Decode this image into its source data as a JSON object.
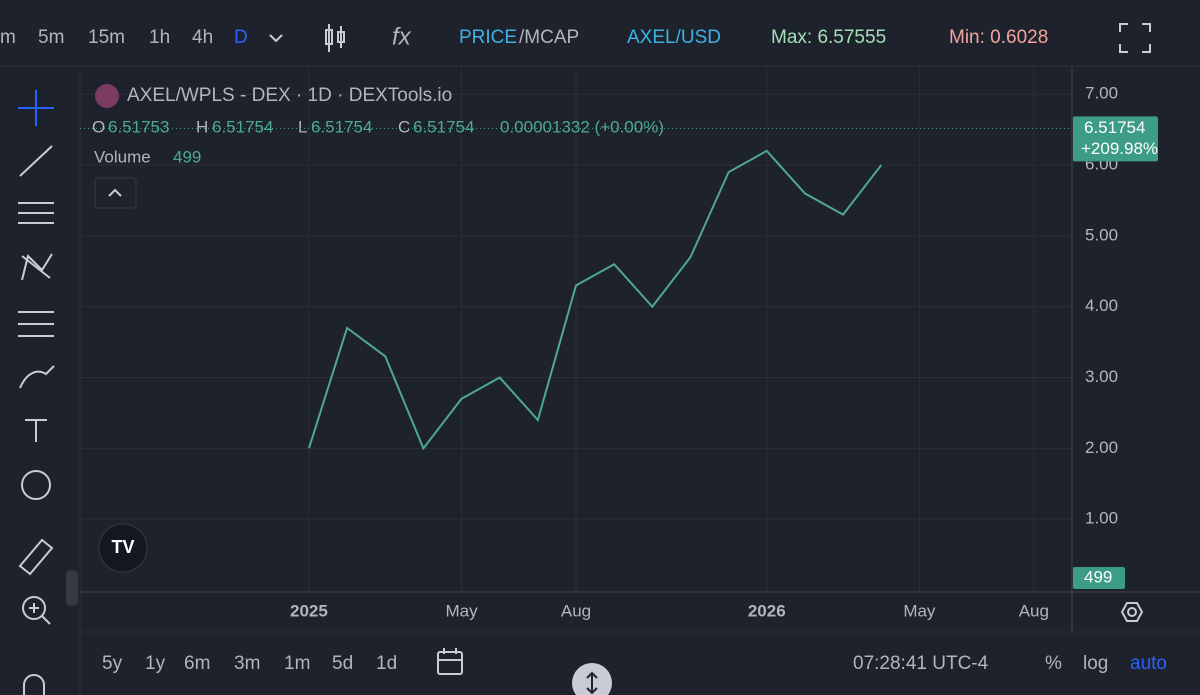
{
  "toolbar": {
    "intervals": [
      "m",
      "5m",
      "15m",
      "1h",
      "4h",
      "D"
    ],
    "price": "PRICE",
    "mcap": "/MCAP",
    "pair": "AXEL/USD",
    "max": "Max: 6.57555",
    "min": "Min: 0.6028"
  },
  "legend": {
    "title": "AXEL/WPLS - DEX · 1D · DEXTools.io",
    "o_label": "O",
    "o": "6.51753",
    "h_label": "H",
    "h": "6.51754",
    "l_label": "L",
    "l": "6.51754",
    "c_label": "C",
    "c": "6.51754",
    "change": "0.00001332 (+0.00%)",
    "volume_label": "Volume",
    "volume": "499"
  },
  "chart_data": {
    "type": "line",
    "x": [
      "2025-01",
      "2025-02",
      "2025-03",
      "2025-04",
      "2025-05",
      "2025-06",
      "2025-07",
      "2025-08",
      "2025-09",
      "2025-10",
      "2025-11",
      "2025-12",
      "2026-01",
      "2026-02",
      "2026-03",
      "2026-04"
    ],
    "series": [
      {
        "name": "AXEL/WPLS",
        "color": "#4fa896",
        "values": [
          2.0,
          3.7,
          3.3,
          2.0,
          2.7,
          3.0,
          2.4,
          4.3,
          4.6,
          4.0,
          4.7,
          5.9,
          6.2,
          5.6,
          5.3,
          6.0
        ]
      }
    ],
    "last_price": 6.51754,
    "last_price_label": "6.51754",
    "last_change": "+209.98%",
    "last_volume": "499",
    "xlim": [
      "2024-07",
      "2026-09"
    ],
    "xticks": [
      {
        "value": "2025-01",
        "label": "2025"
      },
      {
        "value": "2025-05",
        "label": "May"
      },
      {
        "value": "2025-08",
        "label": "Aug"
      },
      {
        "value": "2026-01",
        "label": "2026"
      },
      {
        "value": "2026-05",
        "label": "May"
      },
      {
        "value": "2026-08",
        "label": "Aug"
      }
    ],
    "ylim": [
      0,
      7.3
    ],
    "yticks": [
      {
        "value": 1,
        "label": "1.00"
      },
      {
        "value": 2,
        "label": "2.00"
      },
      {
        "value": 3,
        "label": "3.00"
      },
      {
        "value": 4,
        "label": "4.00"
      },
      {
        "value": 5,
        "label": "5.00"
      },
      {
        "value": 6,
        "label": "6.00"
      },
      {
        "value": 7,
        "label": "7.00"
      }
    ],
    "grid": true
  },
  "bottom": {
    "ranges": [
      "5y",
      "1y",
      "6m",
      "3m",
      "1m",
      "5d",
      "1d"
    ],
    "time": "07:28:41 UTC-4",
    "percent": "%",
    "log": "log",
    "auto": "auto"
  }
}
